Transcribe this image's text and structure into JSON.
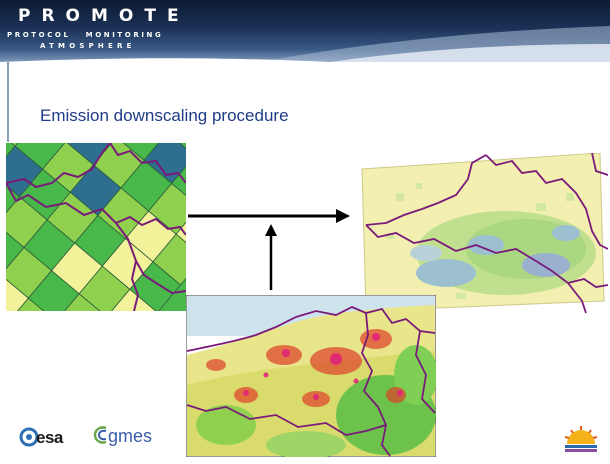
{
  "header": {
    "brand_title": "PROMOTE",
    "brand_sub_line1": "PROTOCOL   MONITORING",
    "brand_sub_line2": "ATMOSPHERE"
  },
  "slide": {
    "title": "Emission downscaling procedure"
  },
  "footer": {
    "logo_left_1": "esa",
    "logo_left_2": "gmes"
  },
  "icons": {
    "arrow_right": "arrow-right-icon",
    "arrow_up": "arrow-up-icon",
    "promote_logo": "promote-sun-logo"
  },
  "colors": {
    "title_blue": "#1f3c86",
    "border_purple": "#7a1a7a",
    "grid_green": "#49b84a",
    "grid_lime": "#8fd14f",
    "grid_yellow": "#f2f29a",
    "grid_darkblue": "#2e6e8e"
  }
}
